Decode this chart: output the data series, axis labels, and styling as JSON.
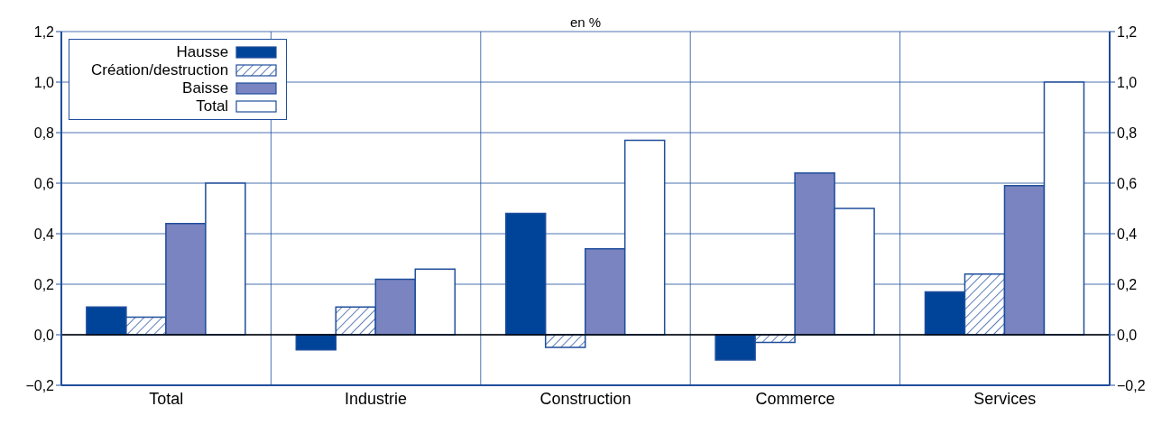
{
  "chart_data": {
    "type": "bar",
    "ylabel": "en %",
    "categories": [
      "Total",
      "Industrie",
      "Construction",
      "Commerce",
      "Services"
    ],
    "series": [
      {
        "name": "Hausse",
        "color": "#00449a",
        "values": [
          0.11,
          -0.06,
          0.48,
          -0.1,
          0.17
        ]
      },
      {
        "name": "Création/destruction",
        "color": "#1f4e9c",
        "values": [
          0.07,
          0.11,
          -0.05,
          -0.03,
          0.24
        ]
      },
      {
        "name": "Baisse",
        "color": "#7a84c0",
        "values": [
          0.44,
          0.22,
          0.34,
          0.64,
          0.59
        ]
      },
      {
        "name": "Total",
        "color": "#ffffff",
        "values": [
          0.6,
          0.26,
          0.77,
          0.5,
          1.0
        ]
      }
    ],
    "ylim": [
      -0.2,
      1.2
    ],
    "yticks": [
      {
        "value": -0.2,
        "label": "−0,2"
      },
      {
        "value": 0,
        "label": "0,0"
      },
      {
        "value": 0.2,
        "label": "0,2"
      },
      {
        "value": 0.4,
        "label": "0,4"
      },
      {
        "value": 0.6,
        "label": "0,6"
      },
      {
        "value": 0.8,
        "label": "0,8"
      },
      {
        "value": 1,
        "label": "1,0"
      },
      {
        "value": 1.2,
        "label": "1,2"
      }
    ],
    "y2lim": [
      -0.2,
      1.2
    ],
    "y2ticks": [
      {
        "value": -0.2,
        "label": "−0,2"
      },
      {
        "value": 0,
        "label": "0,0"
      },
      {
        "value": 0.2,
        "label": "0,2"
      },
      {
        "value": 0.4,
        "label": "0,4"
      },
      {
        "value": 0.6,
        "label": "0,6"
      },
      {
        "value": 0.8,
        "label": "0,8"
      },
      {
        "value": 1,
        "label": "1,0"
      },
      {
        "value": 1.2,
        "label": "1,2"
      }
    ],
    "grid": true,
    "legend": "top left"
  }
}
